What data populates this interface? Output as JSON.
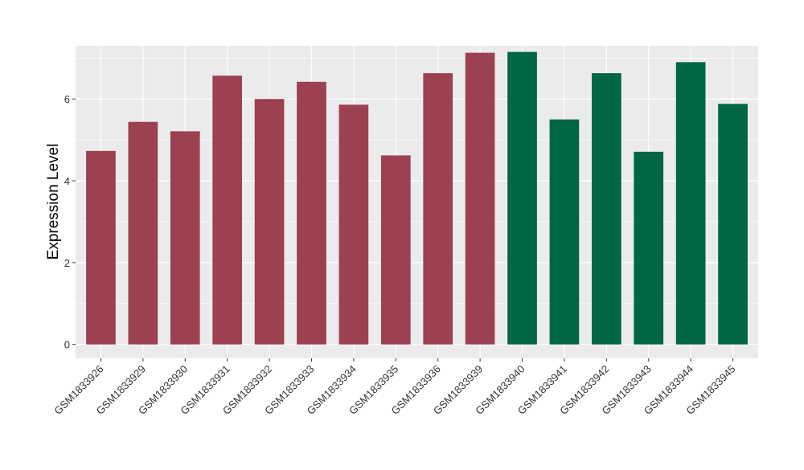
{
  "chart_data": {
    "type": "bar",
    "title": "",
    "xlabel": "",
    "ylabel": "Expression Level",
    "ylim": [
      -0.34,
      7.3
    ],
    "yticks": [
      0,
      2,
      4,
      6
    ],
    "grid": true,
    "legend": "none",
    "categories": [
      "GSM1833926",
      "GSM1833929",
      "GSM1833930",
      "GSM1833931",
      "GSM1833932",
      "GSM1833933",
      "GSM1833934",
      "GSM1833935",
      "GSM1833936",
      "GSM1833939",
      "GSM1833940",
      "GSM1833941",
      "GSM1833942",
      "GSM1833943",
      "GSM1833944",
      "GSM1833945"
    ],
    "values": [
      4.73,
      5.44,
      5.21,
      6.57,
      6.0,
      6.42,
      5.86,
      4.62,
      6.63,
      7.13,
      7.15,
      5.5,
      6.63,
      4.71,
      6.9,
      5.88
    ],
    "bar_colors": [
      "#9b4150",
      "#9b4150",
      "#9b4150",
      "#9b4150",
      "#9b4150",
      "#9b4150",
      "#9b4150",
      "#9b4150",
      "#9b4150",
      "#9b4150",
      "#006644",
      "#006644",
      "#006644",
      "#006644",
      "#006644",
      "#006644"
    ],
    "panel_background": "#ebebeb",
    "grid_color": "#ffffff"
  }
}
